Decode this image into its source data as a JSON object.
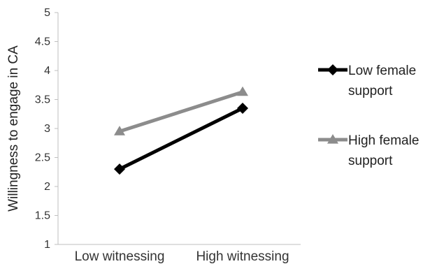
{
  "chart_data": {
    "type": "line",
    "title": "",
    "xlabel": "",
    "ylabel": "Willingness to engage in CA",
    "categories": [
      "Low witnessing",
      "High witnessing"
    ],
    "ylim": [
      1,
      5
    ],
    "yticks": [
      "1",
      "1.5",
      "2",
      "2.5",
      "3",
      "3.5",
      "4",
      "4.5",
      "5"
    ],
    "grid": false,
    "legend_position": "right",
    "series": [
      {
        "name": "Low female support",
        "legend_lines": [
          "Low female",
          "support"
        ],
        "values": [
          2.3,
          3.35
        ],
        "color": "#000000",
        "marker": "diamond"
      },
      {
        "name": "High female support",
        "legend_lines": [
          "High female",
          "support"
        ],
        "values": [
          2.95,
          3.63
        ],
        "color": "#8c8c8c",
        "marker": "triangle"
      }
    ]
  }
}
